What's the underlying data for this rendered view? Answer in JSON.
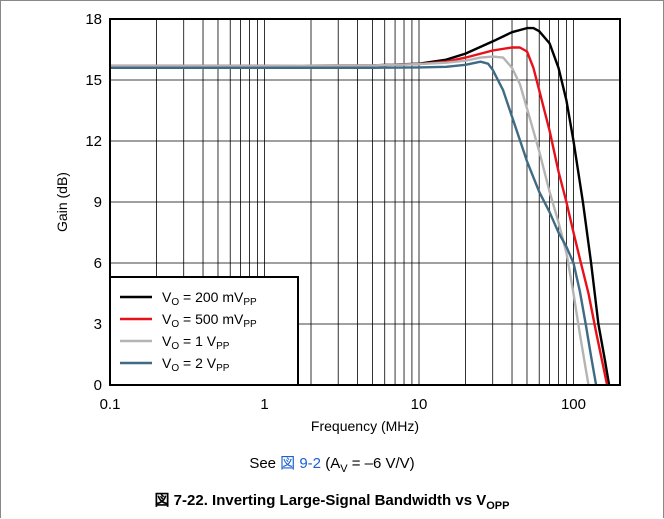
{
  "chart_data": {
    "type": "line",
    "xscale": "log",
    "xlabel": "Frequency (MHz)",
    "ylabel": "Gain (dB)",
    "xlim": [
      0.1,
      200
    ],
    "ylim": [
      0,
      18
    ],
    "xticks": [
      0.1,
      1,
      10,
      100
    ],
    "xtick_labels": [
      "0.1",
      "1",
      "10",
      "100"
    ],
    "yticks": [
      0,
      3,
      6,
      9,
      12,
      15,
      18
    ],
    "ytick_labels": [
      "0",
      "3",
      "6",
      "9",
      "12",
      "15",
      "18"
    ],
    "grid": true,
    "legend_position": "bottom-left",
    "series": [
      {
        "name_main": "V",
        "name_sub": "O",
        "name_mid": " = 200 mV",
        "name_sub2": "PP",
        "color": "#000000",
        "points": [
          [
            0.1,
            15.7
          ],
          [
            1,
            15.7
          ],
          [
            5,
            15.72
          ],
          [
            10,
            15.8
          ],
          [
            15,
            16.0
          ],
          [
            20,
            16.3
          ],
          [
            30,
            16.9
          ],
          [
            40,
            17.35
          ],
          [
            50,
            17.55
          ],
          [
            55,
            17.55
          ],
          [
            60,
            17.4
          ],
          [
            70,
            16.8
          ],
          [
            80,
            15.6
          ],
          [
            90,
            14.0
          ],
          [
            100,
            12.0
          ],
          [
            115,
            9.0
          ],
          [
            130,
            6.0
          ],
          [
            145,
            3.0
          ],
          [
            160,
            1.2
          ],
          [
            170,
            0.0
          ]
        ]
      },
      {
        "name_main": "V",
        "name_sub": "O",
        "name_mid": " = 500 mV",
        "name_sub2": "PP",
        "color": "#e8101a",
        "points": [
          [
            0.1,
            15.7
          ],
          [
            1,
            15.7
          ],
          [
            5,
            15.72
          ],
          [
            10,
            15.78
          ],
          [
            15,
            15.9
          ],
          [
            20,
            16.1
          ],
          [
            30,
            16.45
          ],
          [
            40,
            16.6
          ],
          [
            45,
            16.6
          ],
          [
            50,
            16.4
          ],
          [
            55,
            15.6
          ],
          [
            60,
            14.5
          ],
          [
            70,
            12.5
          ],
          [
            80,
            10.5
          ],
          [
            90,
            9.0
          ],
          [
            100,
            7.5
          ],
          [
            110,
            6.2
          ],
          [
            125,
            4.5
          ],
          [
            140,
            2.6
          ],
          [
            155,
            1.0
          ],
          [
            165,
            0.0
          ]
        ]
      },
      {
        "name_main": "V",
        "name_sub": "O",
        "name_mid": " = 1 V",
        "name_sub2": "PP",
        "color": "#b4b4b4",
        "points": [
          [
            0.1,
            15.7
          ],
          [
            1,
            15.7
          ],
          [
            5,
            15.72
          ],
          [
            10,
            15.78
          ],
          [
            15,
            15.85
          ],
          [
            20,
            15.95
          ],
          [
            25,
            16.1
          ],
          [
            30,
            16.15
          ],
          [
            35,
            16.1
          ],
          [
            40,
            15.6
          ],
          [
            45,
            14.8
          ],
          [
            50,
            13.6
          ],
          [
            60,
            11.5
          ],
          [
            70,
            9.5
          ],
          [
            80,
            8.0
          ],
          [
            90,
            6.5
          ],
          [
            100,
            4.5
          ],
          [
            110,
            2.5
          ],
          [
            120,
            0.8
          ],
          [
            125,
            0.0
          ]
        ]
      },
      {
        "name_main": "V",
        "name_sub": "O",
        "name_mid": " = 2 V",
        "name_sub2": "PP",
        "color": "#3f6b85",
        "points": [
          [
            0.1,
            15.6
          ],
          [
            1,
            15.6
          ],
          [
            5,
            15.6
          ],
          [
            10,
            15.62
          ],
          [
            15,
            15.65
          ],
          [
            20,
            15.75
          ],
          [
            25,
            15.9
          ],
          [
            28,
            15.8
          ],
          [
            30,
            15.5
          ],
          [
            35,
            14.5
          ],
          [
            40,
            13.2
          ],
          [
            50,
            11.0
          ],
          [
            60,
            9.5
          ],
          [
            70,
            8.5
          ],
          [
            80,
            7.5
          ],
          [
            90,
            6.8
          ],
          [
            100,
            6.0
          ],
          [
            110,
            4.6
          ],
          [
            120,
            3.0
          ],
          [
            130,
            1.4
          ],
          [
            140,
            0.0
          ]
        ]
      }
    ]
  },
  "note": {
    "prefix": "See ",
    "link": "図 9-2",
    "mid": " (A",
    "sub": "V",
    "suffix": " = –6 V/V)"
  },
  "caption": {
    "main": "図 7-22. Inverting Large-Signal Bandwidth vs V",
    "sub": "OPP"
  }
}
